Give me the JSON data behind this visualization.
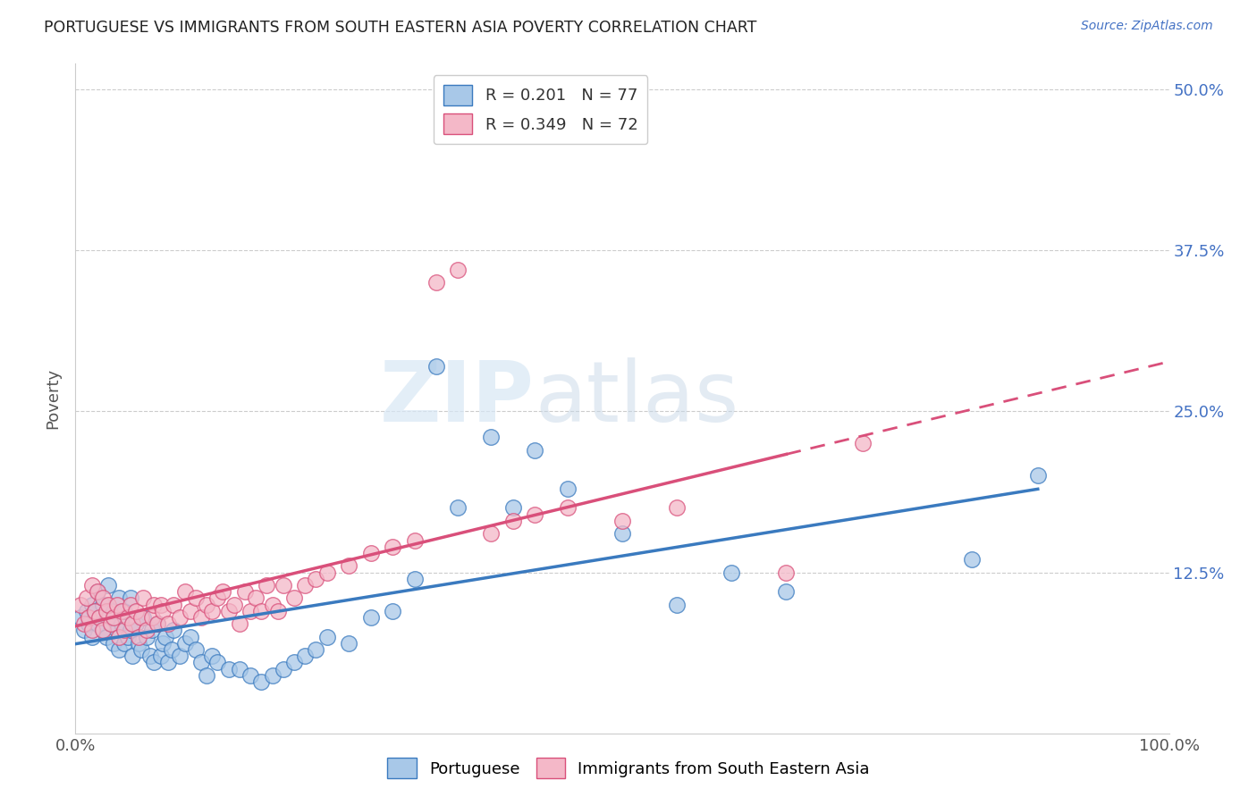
{
  "title": "PORTUGUESE VS IMMIGRANTS FROM SOUTH EASTERN ASIA POVERTY CORRELATION CHART",
  "source": "Source: ZipAtlas.com",
  "ylabel": "Poverty",
  "yticks": [
    "12.5%",
    "25.0%",
    "37.5%",
    "50.0%"
  ],
  "ytick_vals": [
    0.125,
    0.25,
    0.375,
    0.5
  ],
  "color_blue": "#a8c8e8",
  "color_pink": "#f4b8c8",
  "trendline_blue": "#3a7abf",
  "trendline_pink": "#d94f7a",
  "watermark_zip": "ZIP",
  "watermark_atlas": "atlas",
  "blue_R": 0.201,
  "blue_N": 77,
  "pink_R": 0.349,
  "pink_N": 72,
  "blue_scatter_x": [
    0.005,
    0.008,
    0.01,
    0.012,
    0.015,
    0.015,
    0.018,
    0.02,
    0.02,
    0.022,
    0.025,
    0.025,
    0.028,
    0.03,
    0.03,
    0.032,
    0.035,
    0.035,
    0.038,
    0.04,
    0.04,
    0.042,
    0.045,
    0.045,
    0.048,
    0.05,
    0.05,
    0.052,
    0.055,
    0.058,
    0.06,
    0.062,
    0.065,
    0.068,
    0.07,
    0.072,
    0.075,
    0.078,
    0.08,
    0.082,
    0.085,
    0.088,
    0.09,
    0.095,
    0.1,
    0.105,
    0.11,
    0.115,
    0.12,
    0.125,
    0.13,
    0.14,
    0.15,
    0.16,
    0.17,
    0.18,
    0.19,
    0.2,
    0.21,
    0.22,
    0.23,
    0.25,
    0.27,
    0.29,
    0.31,
    0.33,
    0.35,
    0.38,
    0.4,
    0.42,
    0.45,
    0.5,
    0.55,
    0.6,
    0.65,
    0.82,
    0.88
  ],
  "blue_scatter_y": [
    0.09,
    0.08,
    0.095,
    0.085,
    0.1,
    0.075,
    0.095,
    0.085,
    0.11,
    0.09,
    0.1,
    0.08,
    0.075,
    0.09,
    0.115,
    0.085,
    0.07,
    0.095,
    0.08,
    0.065,
    0.105,
    0.085,
    0.07,
    0.095,
    0.075,
    0.08,
    0.105,
    0.06,
    0.085,
    0.07,
    0.065,
    0.09,
    0.075,
    0.06,
    0.08,
    0.055,
    0.085,
    0.06,
    0.07,
    0.075,
    0.055,
    0.065,
    0.08,
    0.06,
    0.07,
    0.075,
    0.065,
    0.055,
    0.045,
    0.06,
    0.055,
    0.05,
    0.05,
    0.045,
    0.04,
    0.045,
    0.05,
    0.055,
    0.06,
    0.065,
    0.075,
    0.07,
    0.09,
    0.095,
    0.12,
    0.285,
    0.175,
    0.23,
    0.175,
    0.22,
    0.19,
    0.155,
    0.1,
    0.125,
    0.11,
    0.135,
    0.2
  ],
  "pink_scatter_x": [
    0.005,
    0.008,
    0.01,
    0.012,
    0.015,
    0.015,
    0.018,
    0.02,
    0.022,
    0.025,
    0.025,
    0.028,
    0.03,
    0.032,
    0.035,
    0.038,
    0.04,
    0.042,
    0.045,
    0.048,
    0.05,
    0.052,
    0.055,
    0.058,
    0.06,
    0.062,
    0.065,
    0.07,
    0.072,
    0.075,
    0.078,
    0.08,
    0.085,
    0.09,
    0.095,
    0.1,
    0.105,
    0.11,
    0.115,
    0.12,
    0.125,
    0.13,
    0.135,
    0.14,
    0.145,
    0.15,
    0.155,
    0.16,
    0.165,
    0.17,
    0.175,
    0.18,
    0.185,
    0.19,
    0.2,
    0.21,
    0.22,
    0.23,
    0.25,
    0.27,
    0.29,
    0.31,
    0.33,
    0.35,
    0.38,
    0.4,
    0.42,
    0.45,
    0.5,
    0.55,
    0.65,
    0.72
  ],
  "pink_scatter_y": [
    0.1,
    0.085,
    0.105,
    0.09,
    0.115,
    0.08,
    0.095,
    0.11,
    0.09,
    0.105,
    0.08,
    0.095,
    0.1,
    0.085,
    0.09,
    0.1,
    0.075,
    0.095,
    0.08,
    0.09,
    0.1,
    0.085,
    0.095,
    0.075,
    0.09,
    0.105,
    0.08,
    0.09,
    0.1,
    0.085,
    0.1,
    0.095,
    0.085,
    0.1,
    0.09,
    0.11,
    0.095,
    0.105,
    0.09,
    0.1,
    0.095,
    0.105,
    0.11,
    0.095,
    0.1,
    0.085,
    0.11,
    0.095,
    0.105,
    0.095,
    0.115,
    0.1,
    0.095,
    0.115,
    0.105,
    0.115,
    0.12,
    0.125,
    0.13,
    0.14,
    0.145,
    0.15,
    0.35,
    0.36,
    0.155,
    0.165,
    0.17,
    0.175,
    0.165,
    0.175,
    0.125,
    0.225
  ]
}
